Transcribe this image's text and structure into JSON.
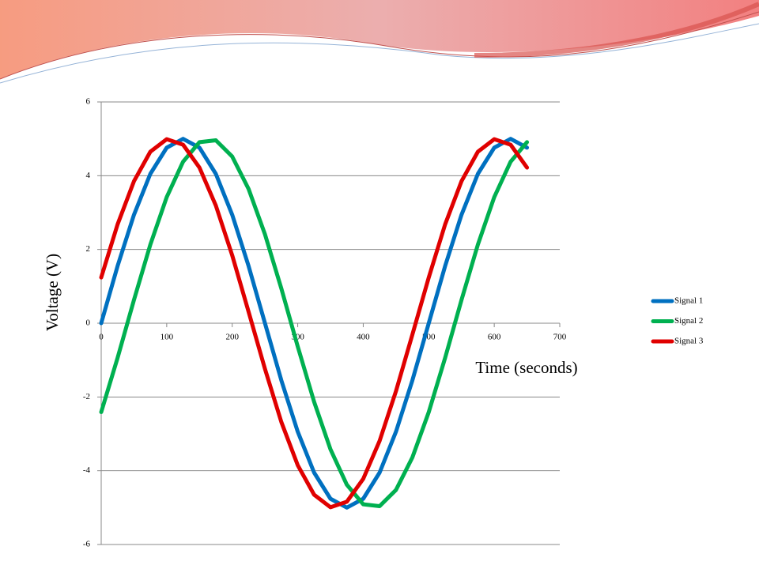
{
  "chart_data": {
    "type": "line",
    "x": [
      0,
      25,
      50,
      75,
      100,
      125,
      150,
      175,
      200,
      225,
      250,
      275,
      300,
      325,
      350,
      375,
      400,
      425,
      450,
      475,
      500,
      525,
      550,
      575,
      600,
      625,
      650
    ],
    "series": [
      {
        "name": "Signal 1",
        "color": "#0070c0",
        "values": [
          0,
          1.55,
          2.94,
          4.05,
          4.76,
          5,
          4.76,
          4.05,
          2.94,
          1.55,
          0,
          -1.55,
          -2.94,
          -4.05,
          -4.76,
          -5,
          -4.76,
          -4.05,
          -2.94,
          -1.55,
          0,
          1.55,
          2.94,
          4.05,
          4.76,
          5,
          4.76
        ]
      },
      {
        "name": "Signal 2",
        "color": "#00b050",
        "values": [
          -2.41,
          -0.94,
          0.63,
          2.13,
          3.42,
          4.38,
          4.91,
          4.96,
          4.52,
          3.64,
          2.41,
          0.94,
          -0.63,
          -2.13,
          -3.42,
          -4.38,
          -4.91,
          -4.96,
          -4.52,
          -3.64,
          -2.41,
          -0.94,
          0.63,
          2.13,
          3.42,
          4.38,
          4.91
        ]
      },
      {
        "name": "Signal 3",
        "color": "#e00000",
        "values": [
          1.24,
          2.68,
          3.85,
          4.65,
          4.99,
          4.84,
          4.22,
          3.19,
          1.84,
          0.31,
          -1.24,
          -2.68,
          -3.85,
          -4.65,
          -4.99,
          -4.84,
          -4.22,
          -3.19,
          -1.84,
          -0.31,
          1.24,
          2.68,
          3.85,
          4.65,
          4.99,
          4.84,
          4.22
        ]
      }
    ],
    "x_label": "Time (seconds)",
    "y_label": "Voltage (V)",
    "xlim": [
      0,
      700
    ],
    "xticks": [
      0,
      100,
      200,
      300,
      400,
      500,
      600,
      700
    ],
    "ylim": [
      -6,
      6
    ],
    "yticks": [
      -6,
      -4,
      -2,
      0,
      2,
      4,
      6
    ],
    "grid": true,
    "legend": "right"
  }
}
